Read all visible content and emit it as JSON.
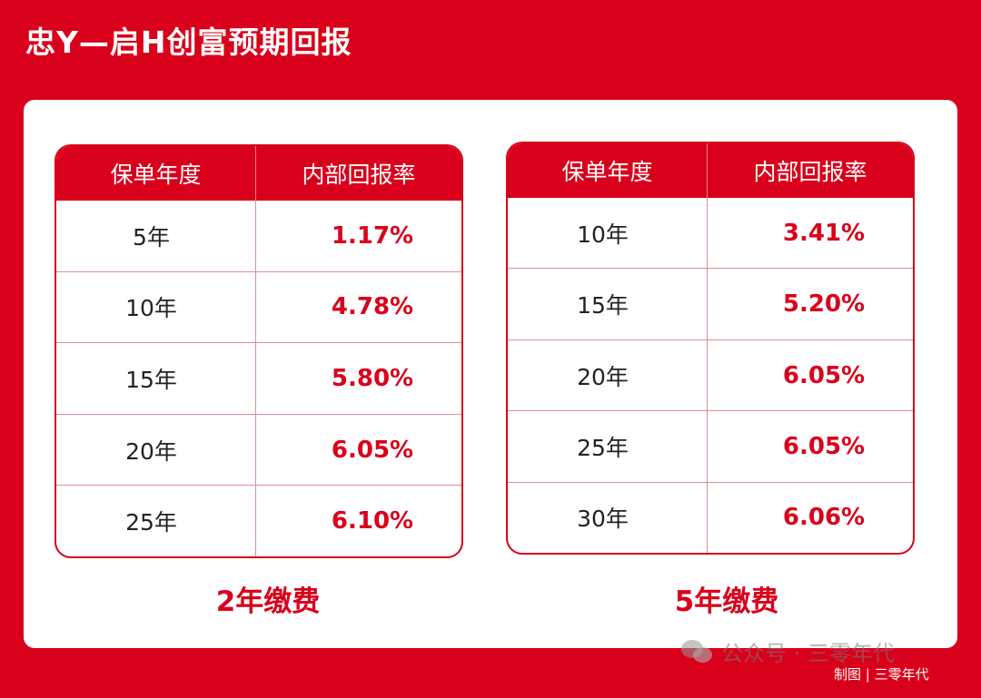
{
  "title": "忠Y—启H创富预期回报",
  "tables": [
    {
      "headers": [
        "保单年度",
        "内部回报率"
      ],
      "rows": [
        {
          "year": "5年",
          "rate": "1.17%"
        },
        {
          "year": "10年",
          "rate": "4.78%"
        },
        {
          "year": "15年",
          "rate": "5.80%"
        },
        {
          "year": "20年",
          "rate": "6.05%"
        },
        {
          "year": "25年",
          "rate": "6.10%"
        }
      ],
      "caption": "2年缴费"
    },
    {
      "headers": [
        "保单年度",
        "内部回报率"
      ],
      "rows": [
        {
          "year": "10年",
          "rate": "3.41%"
        },
        {
          "year": "15年",
          "rate": "5.20%"
        },
        {
          "year": "20年",
          "rate": "6.05%"
        },
        {
          "year": "25年",
          "rate": "6.05%"
        },
        {
          "year": "30年",
          "rate": "6.06%"
        }
      ],
      "caption": "5年缴费"
    }
  ],
  "watermark": {
    "icon": "wechat-icon",
    "text": "公众号 · 三零年代"
  },
  "credit": "制图 | 三零年代",
  "colors": {
    "brand_red": "#d9001b",
    "white": "#ffffff"
  }
}
